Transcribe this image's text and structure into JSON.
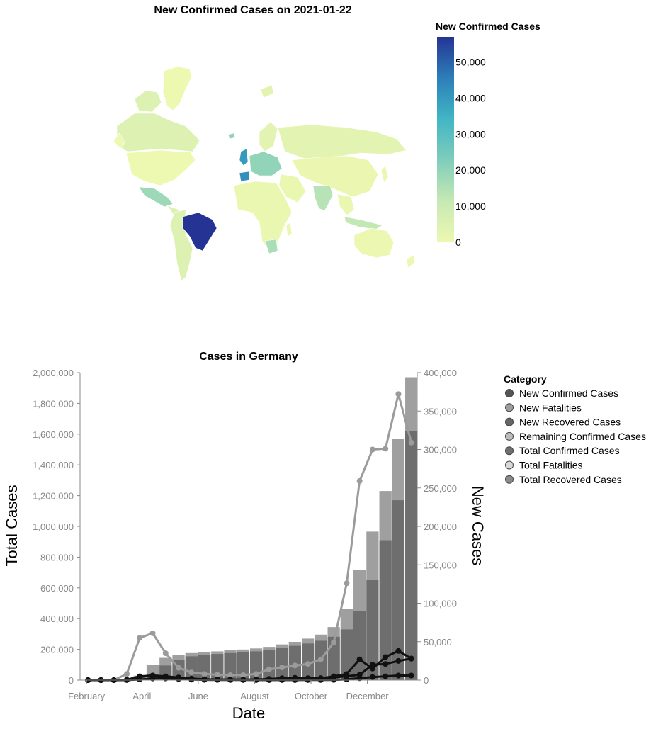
{
  "map": {
    "title": "New Confirmed Cases on 2021-01-22",
    "legend_title": "New Confirmed Cases",
    "legend_ticks": [
      "50,000",
      "40,000",
      "30,000",
      "20,000",
      "10,000",
      "0"
    ],
    "legend_values": [
      50000,
      40000,
      30000,
      20000,
      10000,
      0
    ],
    "scale_max": 57000,
    "colors": {
      "low": "#edf8b1",
      "mid": "#41b6c4",
      "high": "#253494"
    },
    "regions": [
      {
        "name": "North America (US)",
        "value": 0
      },
      {
        "name": "Canada",
        "value": 5000
      },
      {
        "name": "Greenland",
        "value": 0
      },
      {
        "name": "Mexico",
        "value": 18000
      },
      {
        "name": "Brazil",
        "value": 57000
      },
      {
        "name": "South America (other)",
        "value": 5000
      },
      {
        "name": "United Kingdom",
        "value": 40000
      },
      {
        "name": "Spain",
        "value": 42000
      },
      {
        "name": "Europe (central)",
        "value": 20000
      },
      {
        "name": "Russia",
        "value": 3000
      },
      {
        "name": "India",
        "value": 14000
      },
      {
        "name": "Indonesia",
        "value": 12000
      },
      {
        "name": "Africa",
        "value": 1000
      },
      {
        "name": "South Africa",
        "value": 16000
      },
      {
        "name": "China",
        "value": 500
      },
      {
        "name": "Australia",
        "value": 200
      }
    ]
  },
  "chart_data": {
    "type": "bar+line",
    "title": "Cases in Germany",
    "xlabel": "Date",
    "ylabel_left": "Total Cases",
    "ylabel_right": "New Cases",
    "ylim_left": [
      0,
      2000000
    ],
    "ylim_right": [
      0,
      400000
    ],
    "yticks_left": [
      "0",
      "200,000",
      "400,000",
      "600,000",
      "800,000",
      "1,000,000",
      "1,200,000",
      "1,400,000",
      "1,600,000",
      "1,800,000",
      "2,000,000"
    ],
    "yticks_left_values": [
      0,
      200000,
      400000,
      600000,
      800000,
      1000000,
      1200000,
      1400000,
      1600000,
      1800000,
      2000000
    ],
    "yticks_right": [
      "0",
      "50,000",
      "100,000",
      "150,000",
      "200,000",
      "250,000",
      "300,000",
      "350,000",
      "400,000"
    ],
    "yticks_right_values": [
      0,
      50000,
      100000,
      150000,
      200000,
      250000,
      300000,
      350000,
      400000
    ],
    "xticks": [
      "February",
      "April",
      "June",
      "August",
      "October",
      "December"
    ],
    "xticks_dates": [
      "2020-02-01",
      "2020-04-01",
      "2020-06-01",
      "2020-08-01",
      "2020-10-01",
      "2020-12-01"
    ],
    "x_range": [
      "2020-01-25",
      "2021-01-24"
    ],
    "dates": [
      "2020-01-27",
      "2020-02-10",
      "2020-02-24",
      "2020-03-09",
      "2020-03-23",
      "2020-04-06",
      "2020-04-20",
      "2020-05-04",
      "2020-05-18",
      "2020-06-01",
      "2020-06-15",
      "2020-06-29",
      "2020-07-13",
      "2020-07-27",
      "2020-08-10",
      "2020-08-24",
      "2020-09-07",
      "2020-09-21",
      "2020-10-05",
      "2020-10-19",
      "2020-11-02",
      "2020-11-16",
      "2020-11-30",
      "2020-12-14",
      "2020-12-28",
      "2021-01-11"
    ],
    "bars_total_confirmed": [
      16,
      16,
      18,
      1200,
      29000,
      100000,
      145000,
      165000,
      176000,
      183000,
      187000,
      194000,
      199000,
      206000,
      216000,
      232000,
      249000,
      270000,
      296000,
      345000,
      465000,
      716000,
      966000,
      1230000,
      1570000,
      1970000
    ],
    "bars_total_recovered": [
      0,
      0,
      0,
      200,
      6000,
      40000,
      95000,
      130000,
      155000,
      165000,
      170000,
      176000,
      181000,
      187000,
      196000,
      209000,
      223000,
      238000,
      256000,
      282000,
      330000,
      450000,
      650000,
      910000,
      1170000,
      1620000
    ],
    "series": [
      {
        "name": "New Confirmed Cases",
        "values": [
          0,
          0,
          0,
          8000,
          55000,
          61000,
          35000,
          16000,
          10000,
          8000,
          7000,
          6500,
          6500,
          8000,
          14000,
          16500,
          19000,
          21000,
          27000,
          49000,
          126000,
          259000,
          300000,
          301000,
          372000,
          309000
        ]
      },
      {
        "name": "New Fatalities",
        "values": [
          0,
          0,
          0,
          100,
          800,
          2200,
          2200,
          1500,
          700,
          400,
          300,
          200,
          150,
          100,
          100,
          100,
          100,
          150,
          200,
          300,
          900,
          2500,
          4000,
          5000,
          6000,
          6000
        ]
      },
      {
        "name": "New Recovered Cases",
        "values": [
          0,
          0,
          0,
          500,
          4000,
          6000,
          5000,
          3500,
          2000,
          1200,
          800,
          600,
          500,
          800,
          1500,
          2500,
          3000,
          2500,
          2500,
          5000,
          8000,
          27000,
          15000,
          30000,
          38000,
          28000
        ]
      },
      {
        "name": "Remaining Confirmed Cases",
        "values": [
          0,
          0,
          0,
          500,
          5000,
          6000,
          3000,
          2500,
          1500,
          1000,
          800,
          700,
          600,
          700,
          1000,
          1500,
          2000,
          2000,
          2500,
          3500,
          5000,
          7000,
          20000,
          21000,
          25000,
          28000
        ]
      }
    ],
    "legend_title": "Category",
    "legend_entries": [
      {
        "label": "New Confirmed Cases",
        "color": "#555555"
      },
      {
        "label": "New Fatalities",
        "color": "#9e9e9e"
      },
      {
        "label": "New Recovered Cases",
        "color": "#666666"
      },
      {
        "label": "Remaining Confirmed Cases",
        "color": "#bcbcbc"
      },
      {
        "label": "Total Confirmed Cases",
        "color": "#6e6e6e"
      },
      {
        "label": "Total Fatalities",
        "color": "#d8d8d8"
      },
      {
        "label": "Total Recovered Cases",
        "color": "#8a8a8a"
      }
    ],
    "legend_position": "right",
    "colors": {
      "bar_total_confirmed": "#9f9f9f",
      "bar_total_recovered": "#6e6e6e",
      "line_new_confirmed": "#9b9b9b",
      "line_new_other": "#111111"
    }
  }
}
